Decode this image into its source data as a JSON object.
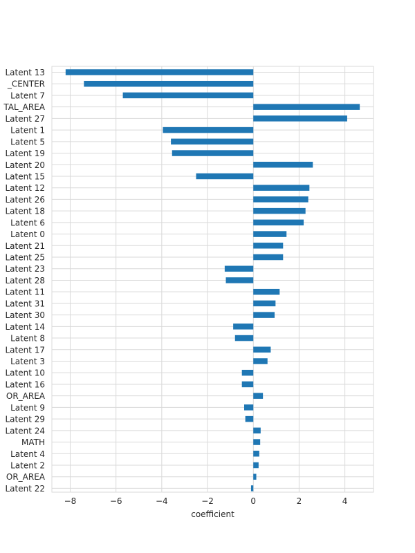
{
  "chart_data": {
    "type": "bar",
    "orientation": "horizontal",
    "title": "",
    "xlabel": "coefficient",
    "ylabel": "",
    "xlim": [
      -8.8,
      5.25
    ],
    "xticks": [
      -8,
      -6,
      -4,
      -2,
      0,
      2,
      4
    ],
    "xtick_labels": [
      "−8",
      "−6",
      "−4",
      "−2",
      "0",
      "2",
      "4"
    ],
    "grid": true,
    "legend": "none",
    "colors": {
      "bar": "#1f77b4",
      "grid": "#d9d9d9",
      "background": "#ffffff",
      "text": "#262626"
    },
    "categories": [
      "Latent 13",
      "_CENTER",
      "Latent 7",
      "TAL_AREA",
      "Latent 27",
      "Latent 1",
      "Latent 5",
      "Latent 19",
      "Latent 20",
      "Latent 15",
      "Latent 12",
      "Latent 26",
      "Latent 18",
      "Latent 6",
      "Latent 0",
      "Latent 21",
      "Latent 25",
      "Latent 23",
      "Latent 28",
      "Latent 11",
      "Latent 31",
      "Latent 30",
      "Latent 14",
      "Latent 8",
      "Latent 17",
      "Latent 3",
      "Latent 10",
      "Latent 16",
      "OR_AREA",
      "Latent 9",
      "Latent 29",
      "Latent 24",
      "MATH",
      "Latent 4",
      "Latent 2",
      "OR_AREA",
      "Latent 22"
    ],
    "values": [
      -8.2,
      -7.4,
      -5.7,
      4.65,
      4.1,
      -3.95,
      -3.6,
      -3.55,
      2.6,
      -2.5,
      2.45,
      2.4,
      2.28,
      2.2,
      1.45,
      1.3,
      1.3,
      -1.25,
      -1.2,
      1.15,
      0.97,
      0.93,
      -0.88,
      -0.8,
      0.76,
      0.62,
      -0.5,
      -0.5,
      0.42,
      -0.4,
      -0.35,
      0.32,
      0.3,
      0.26,
      0.23,
      0.13,
      -0.1
    ]
  }
}
